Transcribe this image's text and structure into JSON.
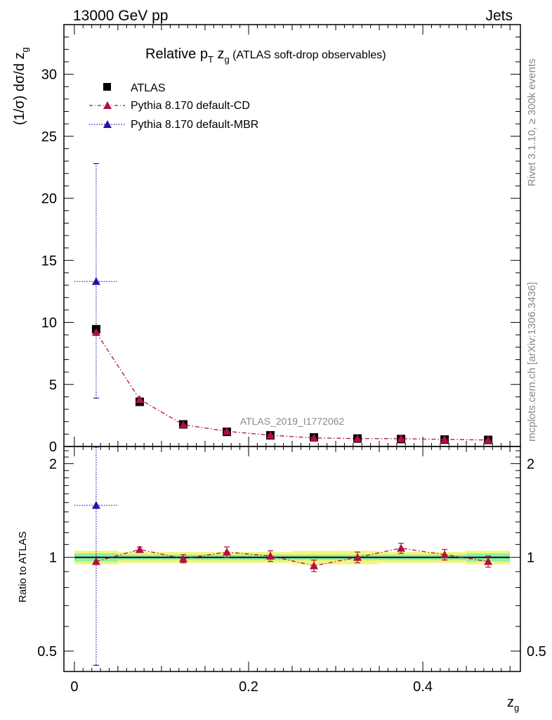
{
  "header": {
    "energy_label": "13000 GeV pp",
    "category_label": "Jets",
    "side_events": "Rivet 3.1.10, ≥ 300k events",
    "side_url": "mcplots.cern.ch [arXiv:1306.3436]",
    "analysis_id": "ATLAS_2019_I1772062"
  },
  "title": {
    "main_prefix": "Relative p",
    "main_sub": "T",
    "main_z": " z",
    "main_zsub": "g",
    "detail": " (ATLAS soft-drop observables)"
  },
  "axes": {
    "ylabel_main": "(1/σ) dσ/d z",
    "ylabel_main_sub": "g",
    "ylabel_ratio": "Ratio to ATLAS",
    "xlabel": "z",
    "xlabel_sub": "g"
  },
  "legend": [
    {
      "label": "ATLAS",
      "marker": "square",
      "color": "#000000"
    },
    {
      "label": "Pythia 8.170 default-CD",
      "marker": "triangle",
      "color": "#b0103a"
    },
    {
      "label": "Pythia 8.170 default-MBR",
      "marker": "triangle",
      "color": "#2b0fa6"
    }
  ],
  "chart_data": [
    {
      "type": "scatter",
      "panel": "main",
      "xlim": [
        -0.012,
        0.512
      ],
      "ylim": [
        0,
        34
      ],
      "xticks": [
        "0",
        "0.2",
        "0.4"
      ],
      "yticks": [
        "0",
        "5",
        "10",
        "15",
        "20",
        "25",
        "30"
      ],
      "bin_edges": [
        0.0,
        0.05,
        0.1,
        0.15,
        0.2,
        0.25,
        0.3,
        0.35,
        0.4,
        0.45,
        0.5
      ],
      "x": [
        0.025,
        0.075,
        0.125,
        0.175,
        0.225,
        0.275,
        0.325,
        0.375,
        0.425,
        0.475
      ],
      "series": [
        {
          "name": "ATLAS",
          "color": "#000000",
          "values": [
            9.45,
            3.6,
            1.78,
            1.18,
            0.9,
            0.73,
            0.64,
            0.6,
            0.56,
            0.53
          ]
        },
        {
          "name": "Pythia 8.170 default-CD",
          "color": "#b0103a",
          "values": [
            9.2,
            3.8,
            1.76,
            1.22,
            0.91,
            0.69,
            0.64,
            0.63,
            0.57,
            0.52
          ]
        },
        {
          "name": "Pythia 8.170 default-MBR",
          "color": "#2b0fa6",
          "x": [
            0.025
          ],
          "values": [
            13.3
          ],
          "err_low": [
            9.4
          ],
          "err_high": [
            9.5
          ]
        }
      ]
    },
    {
      "type": "scatter",
      "panel": "ratio",
      "xlim": [
        -0.012,
        0.512
      ],
      "ylim": [
        0.43,
        2.27
      ],
      "yscale": "log",
      "yticks": [
        "0.5",
        "1",
        "2"
      ],
      "reference": 1.0,
      "band_inner": [
        [
          0.97,
          1.03
        ],
        [
          0.98,
          1.02
        ],
        [
          0.98,
          1.02
        ],
        [
          0.98,
          1.02
        ],
        [
          0.98,
          1.02
        ],
        [
          0.98,
          1.02
        ],
        [
          0.98,
          1.02
        ],
        [
          0.98,
          1.02
        ],
        [
          0.98,
          1.02
        ],
        [
          0.97,
          1.03
        ]
      ],
      "band_outer": [
        [
          0.95,
          1.05
        ],
        [
          0.96,
          1.04
        ],
        [
          0.96,
          1.04
        ],
        [
          0.96,
          1.04
        ],
        [
          0.96,
          1.04
        ],
        [
          0.95,
          1.05
        ],
        [
          0.95,
          1.05
        ],
        [
          0.96,
          1.04
        ],
        [
          0.96,
          1.04
        ],
        [
          0.95,
          1.05
        ]
      ],
      "series": [
        {
          "name": "Pythia 8.170 default-CD",
          "color": "#b0103a",
          "values": [
            0.97,
            1.06,
            0.99,
            1.04,
            1.01,
            0.94,
            1.0,
            1.07,
            1.02,
            0.97
          ],
          "err": [
            0.0,
            0.02,
            0.03,
            0.04,
            0.04,
            0.04,
            0.04,
            0.04,
            0.04,
            0.04
          ]
        },
        {
          "name": "Pythia 8.170 default-MBR",
          "color": "#2b0fa6",
          "x": [
            0.025
          ],
          "values": [
            1.47
          ],
          "err_low": [
            1.02
          ],
          "err_high": [
            0.8
          ]
        }
      ]
    }
  ]
}
